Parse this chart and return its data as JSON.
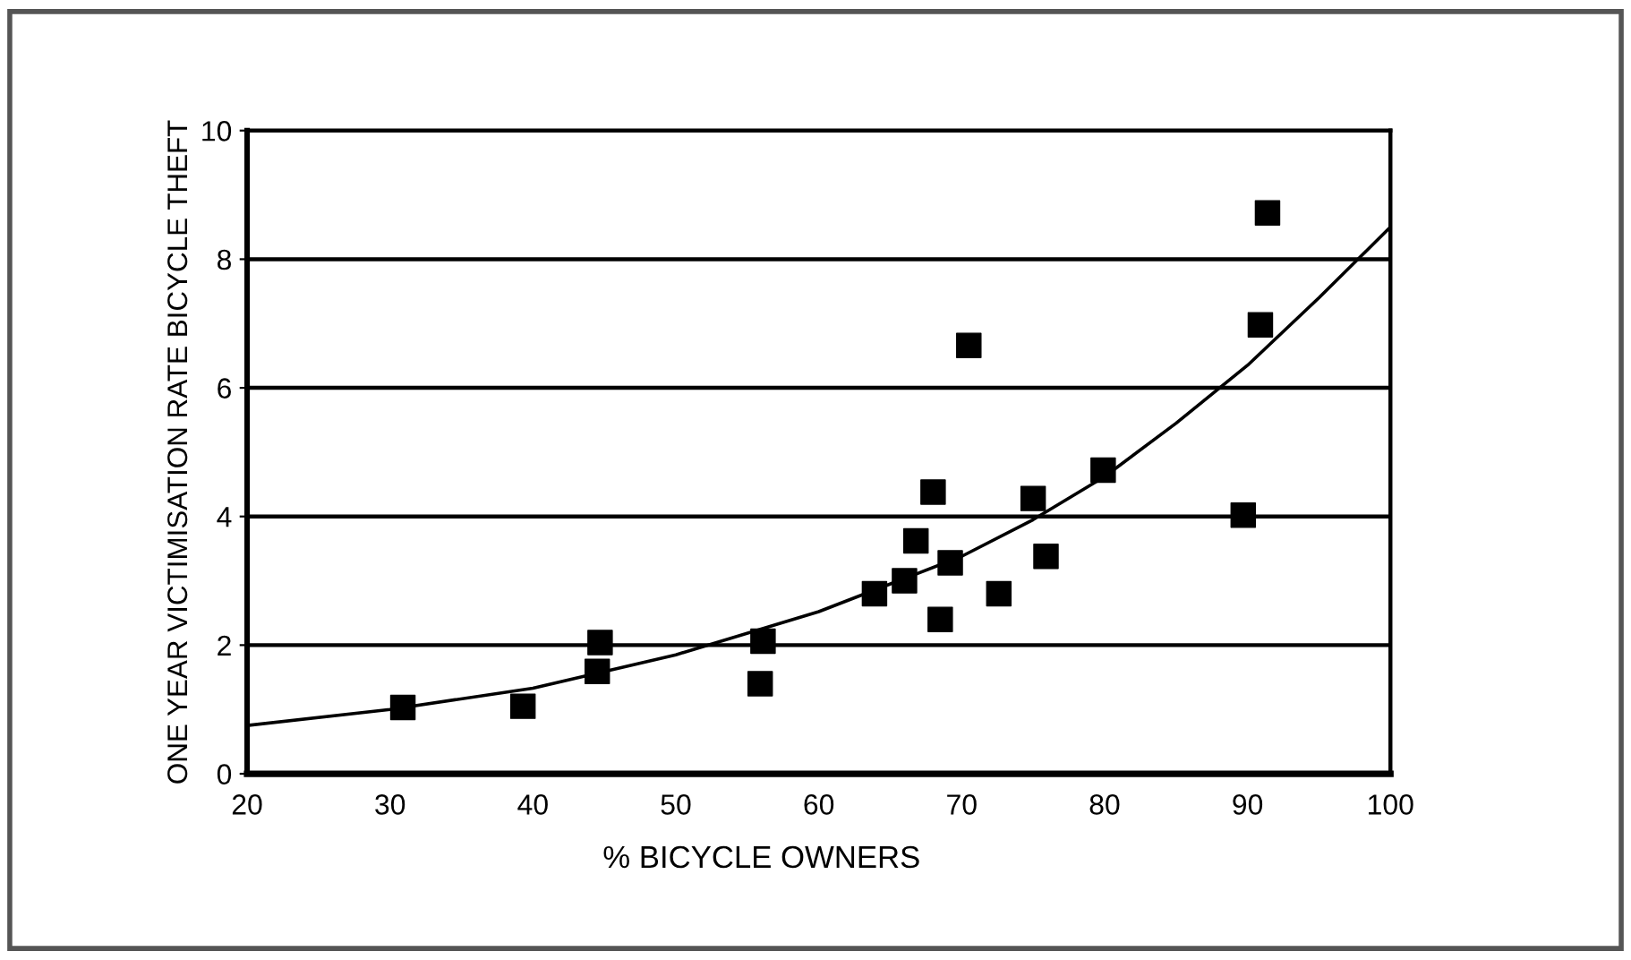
{
  "chart_data": {
    "type": "scatter",
    "xlabel": "% BICYCLE OWNERS",
    "ylabel": "ONE YEAR VICTIMISATION RATE BICYCLE THEFT",
    "xlim": [
      20,
      100
    ],
    "ylim": [
      0,
      10
    ],
    "xticks": [
      20,
      30,
      40,
      50,
      60,
      70,
      80,
      90,
      100
    ],
    "yticks": [
      0,
      2,
      4,
      6,
      8,
      10
    ],
    "grid": "y",
    "marker": "square",
    "series": [
      {
        "color": "#000000",
        "x": [
          30.9,
          39.3,
          44.5,
          44.7,
          55.9,
          56.1,
          63.9,
          66.0,
          66.8,
          68.0,
          68.5,
          69.2,
          70.5,
          72.6,
          75.0,
          75.9,
          79.9,
          89.7,
          90.9,
          91.4
        ],
        "values": [
          1.03,
          1.05,
          1.59,
          2.04,
          1.4,
          2.06,
          2.8,
          3.0,
          3.62,
          4.38,
          2.4,
          3.28,
          6.66,
          2.8,
          4.28,
          3.38,
          4.72,
          4.02,
          6.98,
          8.72
        ]
      },
      {
        "type": "line",
        "color": "#000000",
        "marker": "none",
        "x": [
          20,
          30,
          40,
          50,
          60,
          70,
          75,
          80,
          85,
          90,
          95,
          100
        ],
        "values": [
          0.75,
          1.0,
          1.33,
          1.85,
          2.52,
          3.38,
          3.95,
          4.62,
          5.45,
          6.35,
          7.4,
          8.5
        ]
      }
    ]
  }
}
